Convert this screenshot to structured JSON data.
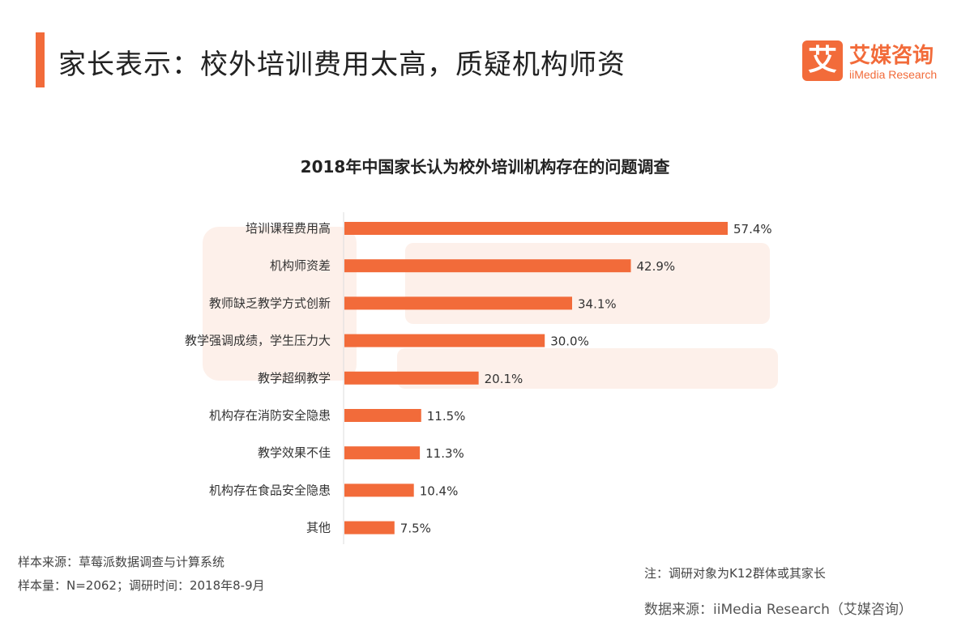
{
  "header": {
    "title": "家长表示：校外培训费用太高，质疑机构师资"
  },
  "logo": {
    "glyph": "艾",
    "name_cn": "艾媒咨询",
    "name_en": "iiMedia Research"
  },
  "watermark": {
    "name_cn": "艾媒咨询",
    "name_en": "iiMedia Research"
  },
  "colors": {
    "accent": "#f26b3a",
    "bar": "#f26b3a"
  },
  "chart_data": {
    "type": "bar",
    "orientation": "horizontal",
    "title": "2018年中国家长认为校外培训机构存在的问题调查",
    "categories": [
      "培训课程费用高",
      "机构师资差",
      "教师缺乏教学方式创新",
      "教学强调成绩，学生压力大",
      "教学超纲教学",
      "机构存在消防安全隐患",
      "教学效果不佳",
      "机构存在食品安全隐患",
      "其他"
    ],
    "values": [
      57.4,
      42.9,
      34.1,
      30.0,
      20.1,
      11.5,
      11.3,
      10.4,
      7.5
    ],
    "data_labels": [
      "57.4%",
      "42.9%",
      "34.1%",
      "30.0%",
      "20.1%",
      "11.5%",
      "11.3%",
      "10.4%",
      "7.5%"
    ],
    "unit": "%",
    "xlim": [
      0,
      60
    ],
    "grid": false
  },
  "footer": {
    "source": "样本来源：草莓派数据调查与计算系统",
    "sample": "样本量：N=2062；调研时间：2018年8-9月",
    "note": "注：调研对象为K12群体或其家长",
    "data_source": "数据来源：iiMedia Research（艾媒咨询）"
  }
}
